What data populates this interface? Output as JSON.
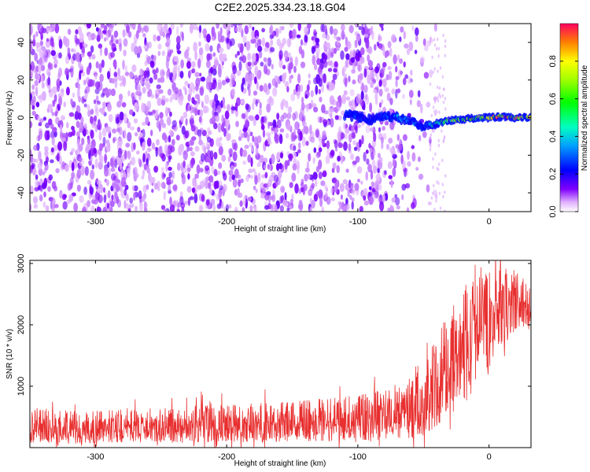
{
  "title": "C2E2.2025.334.23.18.G04",
  "chart_data": [
    {
      "type": "heatmap",
      "name": "spectrogram",
      "xlabel": "Height of straight line (km)",
      "ylabel": "Frequency (Hz)",
      "xlim": [
        -350,
        32
      ],
      "ylim": [
        -50,
        50
      ],
      "xticks": [
        -300,
        -200,
        -100,
        0
      ],
      "yticks": [
        -40,
        -20,
        0,
        20,
        40
      ],
      "colorbar": {
        "label": "Normalized spectral amplitude",
        "range": [
          0.0,
          1.0
        ],
        "ticks": [
          0.0,
          0.2,
          0.4,
          0.6,
          0.8
        ],
        "tick_labels": [
          "0.0",
          "0.2",
          "0.4",
          "0.6",
          "0.8"
        ]
      },
      "features": [
        {
          "description": "broadband noise",
          "x_range": [
            -350,
            -55
          ],
          "freq_range": [
            -50,
            50
          ],
          "amplitude_range": [
            0.0,
            0.12
          ]
        },
        {
          "description": "signal trace near 0 Hz",
          "x_range": [
            -110,
            32
          ],
          "center_freq": 0,
          "amplitude_range": [
            0.1,
            1.0
          ]
        }
      ],
      "signal_trace": [
        {
          "x": -110,
          "freq": 1.5,
          "amp": 0.25
        },
        {
          "x": -100,
          "freq": 0.5,
          "amp": 0.3
        },
        {
          "x": -90,
          "freq": -1,
          "amp": 0.22
        },
        {
          "x": -80,
          "freq": 1,
          "amp": 0.3
        },
        {
          "x": -70,
          "freq": 0,
          "amp": 0.35
        },
        {
          "x": -60,
          "freq": -2,
          "amp": 0.3
        },
        {
          "x": -50,
          "freq": -5,
          "amp": 0.32
        },
        {
          "x": -40,
          "freq": -3,
          "amp": 0.55
        },
        {
          "x": -30,
          "freq": -1.5,
          "amp": 0.7
        },
        {
          "x": -20,
          "freq": -1,
          "amp": 0.8
        },
        {
          "x": -10,
          "freq": 0,
          "amp": 0.85
        },
        {
          "x": 0,
          "freq": 0,
          "amp": 0.9
        },
        {
          "x": 10,
          "freq": 0.5,
          "amp": 0.95
        },
        {
          "x": 20,
          "freq": 0,
          "amp": 0.95
        },
        {
          "x": 30,
          "freq": 0,
          "amp": 1.0
        }
      ]
    },
    {
      "type": "line",
      "name": "snr",
      "xlabel": "Height of straight line (km)",
      "ylabel": "SNR (10 * v/v)",
      "xlim": [
        -350,
        32
      ],
      "ylim": [
        0,
        3050
      ],
      "xticks": [
        -300,
        -200,
        -100,
        0
      ],
      "yticks": [
        1000,
        2000,
        3000
      ],
      "color": "#e83030",
      "envelope": [
        {
          "x": -350,
          "low": 80,
          "high": 650
        },
        {
          "x": -300,
          "low": 80,
          "high": 600
        },
        {
          "x": -250,
          "low": 90,
          "high": 650
        },
        {
          "x": -200,
          "low": 90,
          "high": 700
        },
        {
          "x": -150,
          "low": 100,
          "high": 750
        },
        {
          "x": -100,
          "low": 120,
          "high": 850
        },
        {
          "x": -80,
          "low": 130,
          "high": 950
        },
        {
          "x": -60,
          "low": 150,
          "high": 1200
        },
        {
          "x": -50,
          "low": 200,
          "high": 1600
        },
        {
          "x": -40,
          "low": 350,
          "high": 2000
        },
        {
          "x": -30,
          "low": 500,
          "high": 2200
        },
        {
          "x": -20,
          "low": 800,
          "high": 2600
        },
        {
          "x": -10,
          "low": 1100,
          "high": 3000
        },
        {
          "x": 0,
          "low": 1300,
          "high": 2850
        },
        {
          "x": 10,
          "low": 1700,
          "high": 2900
        },
        {
          "x": 20,
          "low": 1900,
          "high": 2950
        },
        {
          "x": 32,
          "low": 2000,
          "high": 2600
        }
      ]
    }
  ]
}
